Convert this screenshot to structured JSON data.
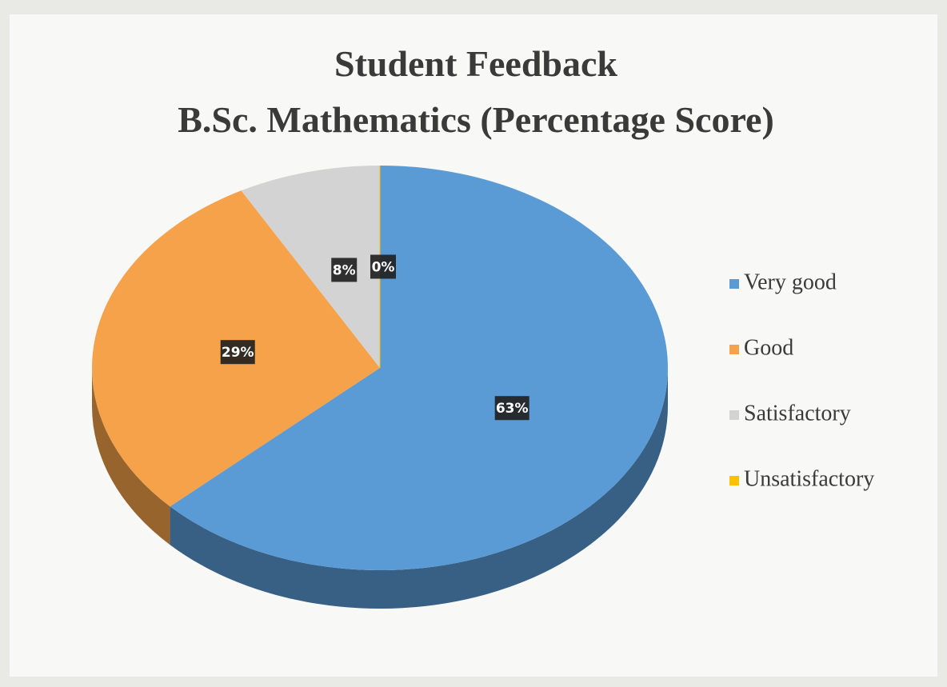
{
  "chart_data": {
    "type": "pie",
    "title": "Student Feedback",
    "subtitle": "B.Sc. Mathematics  (Percentage Score)",
    "categories": [
      "Very good",
      "Good",
      "Satisfactory",
      "Unsatisfactory"
    ],
    "values": [
      63,
      29,
      8,
      0
    ],
    "value_labels": [
      "63%",
      "29%",
      "8%",
      "0%"
    ],
    "colors": [
      "#5b9bd5",
      "#f5a24a",
      "#d3d3d3",
      "#ffc000"
    ],
    "legend": "right"
  }
}
